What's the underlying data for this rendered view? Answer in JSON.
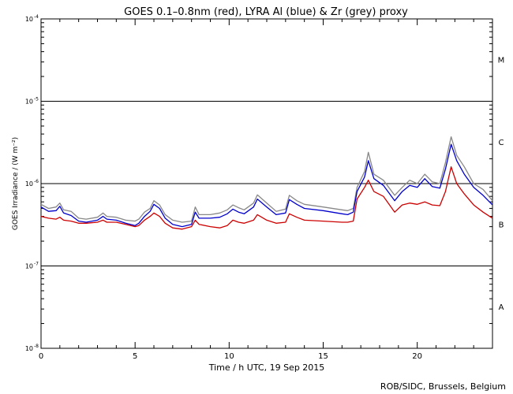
{
  "chart_data": {
    "type": "line",
    "title": "GOES 0.1–0.8nm (red), LYRA Al (blue) & Zr (grey) proxy",
    "xlabel": "Time / h UTC, 19 Sep 2015",
    "ylabel": "GOES Irradiance / (W m⁻²)",
    "xlim": [
      0,
      24
    ],
    "ylim": [
      1e-08,
      0.0001
    ],
    "yscale": "log",
    "x_ticks": [
      0,
      5,
      10,
      15,
      20
    ],
    "y_tick_labels": [
      {
        "base": "10",
        "exp": "-8",
        "value": 1e-08
      },
      {
        "base": "10",
        "exp": "-7",
        "value": 1e-07
      },
      {
        "base": "10",
        "exp": "-6",
        "value": 1e-06
      },
      {
        "base": "10",
        "exp": "-5",
        "value": 1e-05
      },
      {
        "base": "10",
        "exp": "-4",
        "value": 0.0001
      }
    ],
    "class_lines": [
      1e-07,
      1e-06,
      1e-05
    ],
    "class_labels": [
      {
        "label": "M",
        "value": 3.2e-05
      },
      {
        "label": "C",
        "value": 3.2e-06
      },
      {
        "label": "B",
        "value": 3.2e-07
      },
      {
        "label": "A",
        "value": 3.2e-08
      }
    ],
    "series": [
      {
        "color": "#888888",
        "points": [
          [
            0,
            5.6e-07
          ],
          [
            0.4,
            5e-07
          ],
          [
            0.8,
            5.2e-07
          ],
          [
            1.0,
            5.8e-07
          ],
          [
            1.2,
            4.8e-07
          ],
          [
            1.6,
            4.6e-07
          ],
          [
            2.0,
            3.8e-07
          ],
          [
            2.4,
            3.7e-07
          ],
          [
            3.0,
            3.9e-07
          ],
          [
            3.3,
            4.4e-07
          ],
          [
            3.5,
            4e-07
          ],
          [
            4.0,
            3.9e-07
          ],
          [
            4.5,
            3.6e-07
          ],
          [
            5.0,
            3.5e-07
          ],
          [
            5.2,
            3.7e-07
          ],
          [
            5.5,
            4.5e-07
          ],
          [
            5.8,
            5e-07
          ],
          [
            6.0,
            6.2e-07
          ],
          [
            6.3,
            5.5e-07
          ],
          [
            6.6,
            4.2e-07
          ],
          [
            7.0,
            3.6e-07
          ],
          [
            7.5,
            3.4e-07
          ],
          [
            8.0,
            3.5e-07
          ],
          [
            8.2,
            5.2e-07
          ],
          [
            8.4,
            4.2e-07
          ],
          [
            9.0,
            4.2e-07
          ],
          [
            9.5,
            4.4e-07
          ],
          [
            9.9,
            4.8e-07
          ],
          [
            10.2,
            5.5e-07
          ],
          [
            10.5,
            5.1e-07
          ],
          [
            10.8,
            4.8e-07
          ],
          [
            11.3,
            5.8e-07
          ],
          [
            11.5,
            7.3e-07
          ],
          [
            12.0,
            5.8e-07
          ],
          [
            12.5,
            4.6e-07
          ],
          [
            13.0,
            4.9e-07
          ],
          [
            13.2,
            7.2e-07
          ],
          [
            13.6,
            6.2e-07
          ],
          [
            14.0,
            5.6e-07
          ],
          [
            15.0,
            5.2e-07
          ],
          [
            16.0,
            4.8e-07
          ],
          [
            16.3,
            4.7e-07
          ],
          [
            16.6,
            5e-07
          ],
          [
            16.8,
            9e-07
          ],
          [
            17.2,
            1.4e-06
          ],
          [
            17.4,
            2.4e-06
          ],
          [
            17.7,
            1.3e-06
          ],
          [
            18.2,
            1.1e-06
          ],
          [
            18.8,
            7.2e-07
          ],
          [
            19.2,
            9e-07
          ],
          [
            19.6,
            1.1e-06
          ],
          [
            20.0,
            1e-06
          ],
          [
            20.4,
            1.3e-06
          ],
          [
            20.8,
            1.05e-06
          ],
          [
            21.2,
            1e-06
          ],
          [
            21.5,
            1.8e-06
          ],
          [
            21.8,
            3.7e-06
          ],
          [
            22.1,
            2.2e-06
          ],
          [
            22.5,
            1.6e-06
          ],
          [
            23.0,
            1e-06
          ],
          [
            23.5,
            8.5e-07
          ],
          [
            24.0,
            6.2e-07
          ]
        ]
      },
      {
        "color": "#0000cc",
        "points": [
          [
            0,
            5.2e-07
          ],
          [
            0.4,
            4.6e-07
          ],
          [
            0.8,
            4.7e-07
          ],
          [
            1.0,
            5.3e-07
          ],
          [
            1.2,
            4.4e-07
          ],
          [
            1.6,
            4.1e-07
          ],
          [
            2.0,
            3.5e-07
          ],
          [
            2.4,
            3.4e-07
          ],
          [
            3.0,
            3.6e-07
          ],
          [
            3.3,
            4e-07
          ],
          [
            3.5,
            3.7e-07
          ],
          [
            4.0,
            3.6e-07
          ],
          [
            4.5,
            3.3e-07
          ],
          [
            5.0,
            3.1e-07
          ],
          [
            5.2,
            3.3e-07
          ],
          [
            5.5,
            4e-07
          ],
          [
            5.8,
            4.6e-07
          ],
          [
            6.0,
            5.6e-07
          ],
          [
            6.3,
            5e-07
          ],
          [
            6.6,
            3.8e-07
          ],
          [
            7.0,
            3.2e-07
          ],
          [
            7.5,
            3e-07
          ],
          [
            8.0,
            3.2e-07
          ],
          [
            8.2,
            4.5e-07
          ],
          [
            8.4,
            3.8e-07
          ],
          [
            9.0,
            3.8e-07
          ],
          [
            9.5,
            3.9e-07
          ],
          [
            9.9,
            4.3e-07
          ],
          [
            10.2,
            4.9e-07
          ],
          [
            10.5,
            4.5e-07
          ],
          [
            10.8,
            4.3e-07
          ],
          [
            11.3,
            5.2e-07
          ],
          [
            11.5,
            6.5e-07
          ],
          [
            12.0,
            5.2e-07
          ],
          [
            12.5,
            4.2e-07
          ],
          [
            13.0,
            4.4e-07
          ],
          [
            13.2,
            6.4e-07
          ],
          [
            13.6,
            5.6e-07
          ],
          [
            14.0,
            5e-07
          ],
          [
            15.0,
            4.7e-07
          ],
          [
            16.0,
            4.3e-07
          ],
          [
            16.3,
            4.2e-07
          ],
          [
            16.6,
            4.5e-07
          ],
          [
            16.8,
            8e-07
          ],
          [
            17.2,
            1.2e-06
          ],
          [
            17.4,
            1.9e-06
          ],
          [
            17.7,
            1.15e-06
          ],
          [
            18.2,
            9.5e-07
          ],
          [
            18.8,
            6.2e-07
          ],
          [
            19.2,
            8e-07
          ],
          [
            19.6,
            9.5e-07
          ],
          [
            20.0,
            9e-07
          ],
          [
            20.4,
            1.15e-06
          ],
          [
            20.8,
            9.2e-07
          ],
          [
            21.2,
            8.8e-07
          ],
          [
            21.5,
            1.5e-06
          ],
          [
            21.8,
            3e-06
          ],
          [
            22.1,
            1.9e-06
          ],
          [
            22.5,
            1.3e-06
          ],
          [
            23.0,
            9e-07
          ],
          [
            23.5,
            7.2e-07
          ],
          [
            24.0,
            5.5e-07
          ]
        ]
      },
      {
        "color": "#cc0000",
        "points": [
          [
            0,
            4e-07
          ],
          [
            0.4,
            3.8e-07
          ],
          [
            0.8,
            3.7e-07
          ],
          [
            1.0,
            3.9e-07
          ],
          [
            1.2,
            3.6e-07
          ],
          [
            1.6,
            3.5e-07
          ],
          [
            2.0,
            3.3e-07
          ],
          [
            2.4,
            3.3e-07
          ],
          [
            3.0,
            3.4e-07
          ],
          [
            3.3,
            3.6e-07
          ],
          [
            3.5,
            3.4e-07
          ],
          [
            4.0,
            3.4e-07
          ],
          [
            4.5,
            3.2e-07
          ],
          [
            5.0,
            3e-07
          ],
          [
            5.2,
            3.1e-07
          ],
          [
            5.5,
            3.6e-07
          ],
          [
            5.8,
            4e-07
          ],
          [
            6.0,
            4.4e-07
          ],
          [
            6.3,
            4e-07
          ],
          [
            6.6,
            3.3e-07
          ],
          [
            7.0,
            2.9e-07
          ],
          [
            7.5,
            2.8e-07
          ],
          [
            8.0,
            3e-07
          ],
          [
            8.2,
            3.6e-07
          ],
          [
            8.4,
            3.2e-07
          ],
          [
            9.0,
            3e-07
          ],
          [
            9.5,
            2.9e-07
          ],
          [
            9.9,
            3.1e-07
          ],
          [
            10.2,
            3.6e-07
          ],
          [
            10.5,
            3.4e-07
          ],
          [
            10.8,
            3.3e-07
          ],
          [
            11.3,
            3.6e-07
          ],
          [
            11.5,
            4.2e-07
          ],
          [
            12.0,
            3.6e-07
          ],
          [
            12.5,
            3.3e-07
          ],
          [
            13.0,
            3.4e-07
          ],
          [
            13.2,
            4.3e-07
          ],
          [
            13.6,
            3.9e-07
          ],
          [
            14.0,
            3.6e-07
          ],
          [
            15.0,
            3.5e-07
          ],
          [
            16.0,
            3.4e-07
          ],
          [
            16.3,
            3.4e-07
          ],
          [
            16.6,
            3.5e-07
          ],
          [
            16.8,
            6.5e-07
          ],
          [
            17.2,
            9e-07
          ],
          [
            17.4,
            1.1e-06
          ],
          [
            17.7,
            8e-07
          ],
          [
            18.2,
            7e-07
          ],
          [
            18.8,
            4.5e-07
          ],
          [
            19.2,
            5.5e-07
          ],
          [
            19.6,
            5.8e-07
          ],
          [
            20.0,
            5.6e-07
          ],
          [
            20.4,
            6e-07
          ],
          [
            20.8,
            5.5e-07
          ],
          [
            21.2,
            5.4e-07
          ],
          [
            21.5,
            8e-07
          ],
          [
            21.8,
            1.6e-06
          ],
          [
            22.1,
            1e-06
          ],
          [
            22.5,
            7.5e-07
          ],
          [
            23.0,
            5.5e-07
          ],
          [
            23.5,
            4.5e-07
          ],
          [
            24.0,
            3.8e-07
          ]
        ]
      }
    ],
    "grid": false,
    "credit": "ROB/SIDC, Brussels, Belgium"
  }
}
